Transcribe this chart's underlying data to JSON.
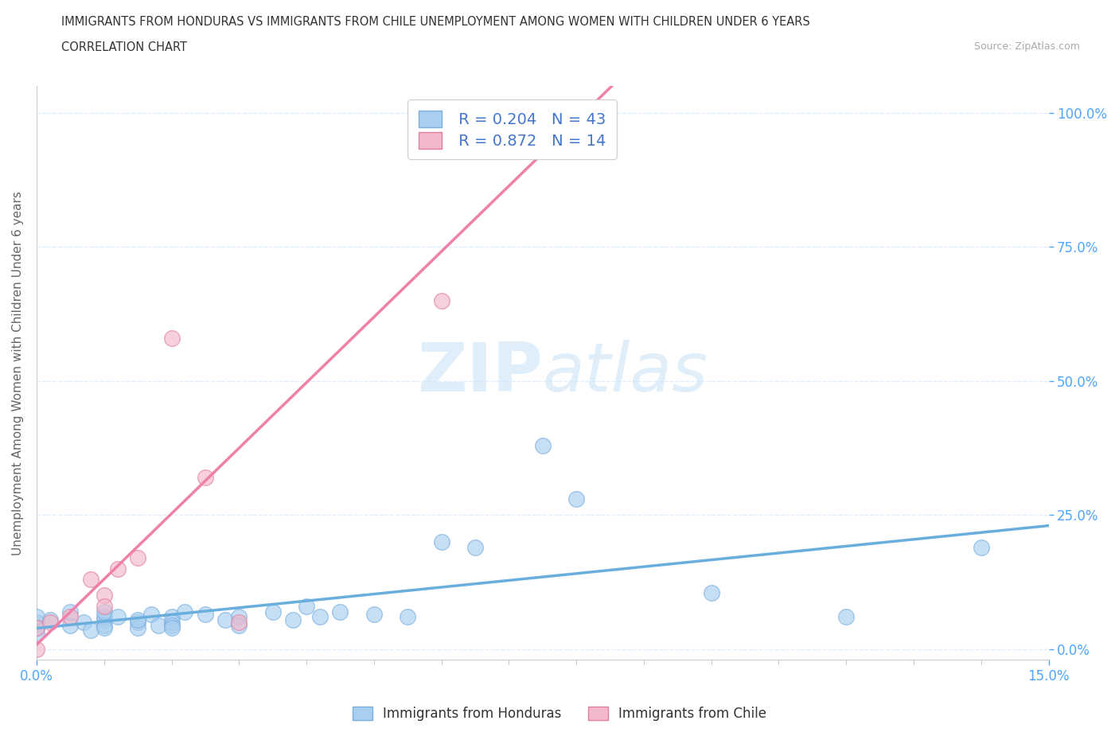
{
  "title_line1": "IMMIGRANTS FROM HONDURAS VS IMMIGRANTS FROM CHILE UNEMPLOYMENT AMONG WOMEN WITH CHILDREN UNDER 6 YEARS",
  "title_line2": "CORRELATION CHART",
  "source_text": "Source: ZipAtlas.com",
  "ylabel": "Unemployment Among Women with Children Under 6 years",
  "xlim": [
    0.0,
    0.15
  ],
  "ylim": [
    -0.02,
    1.05
  ],
  "ytick_vals": [
    0.0,
    0.25,
    0.5,
    0.75,
    1.0
  ],
  "ytick_labels_right": [
    "0.0%",
    "25.0%",
    "50.0%",
    "75.0%",
    "100.0%"
  ],
  "honduras_color": "#a8cff0",
  "chile_color": "#f4b8cb",
  "honduras_line_color": "#6aaede",
  "chile_line_color": "#f080a8",
  "honduras_R": 0.204,
  "honduras_N": 43,
  "chile_R": 0.872,
  "chile_N": 14,
  "watermark_zip": "ZIP",
  "watermark_atlas": "atlas",
  "grid_color": "#ddeeff",
  "right_axis_color": "#4da6ff",
  "legend_label_color": "#4477cc",
  "honduras_x": [
    0.0,
    0.0,
    0.0,
    0.0,
    0.002,
    0.005,
    0.005,
    0.007,
    0.008,
    0.01,
    0.01,
    0.01,
    0.01,
    0.01,
    0.012,
    0.015,
    0.015,
    0.015,
    0.017,
    0.018,
    0.02,
    0.02,
    0.02,
    0.02,
    0.022,
    0.025,
    0.028,
    0.03,
    0.03,
    0.035,
    0.038,
    0.04,
    0.042,
    0.045,
    0.05,
    0.055,
    0.06,
    0.065,
    0.075,
    0.08,
    0.1,
    0.12,
    0.14
  ],
  "honduras_y": [
    0.05,
    0.04,
    0.06,
    0.03,
    0.055,
    0.045,
    0.07,
    0.05,
    0.035,
    0.055,
    0.06,
    0.045,
    0.04,
    0.07,
    0.06,
    0.05,
    0.04,
    0.055,
    0.065,
    0.045,
    0.06,
    0.05,
    0.045,
    0.04,
    0.07,
    0.065,
    0.055,
    0.06,
    0.045,
    0.07,
    0.055,
    0.08,
    0.06,
    0.07,
    0.065,
    0.06,
    0.2,
    0.19,
    0.38,
    0.28,
    0.105,
    0.06,
    0.19
  ],
  "chile_x": [
    0.0,
    0.0,
    0.002,
    0.005,
    0.008,
    0.01,
    0.01,
    0.012,
    0.015,
    0.02,
    0.025,
    0.03,
    0.06,
    0.07
  ],
  "chile_y": [
    0.04,
    0.0,
    0.05,
    0.06,
    0.13,
    0.1,
    0.08,
    0.15,
    0.17,
    0.58,
    0.32,
    0.05,
    0.65,
    1.0
  ]
}
